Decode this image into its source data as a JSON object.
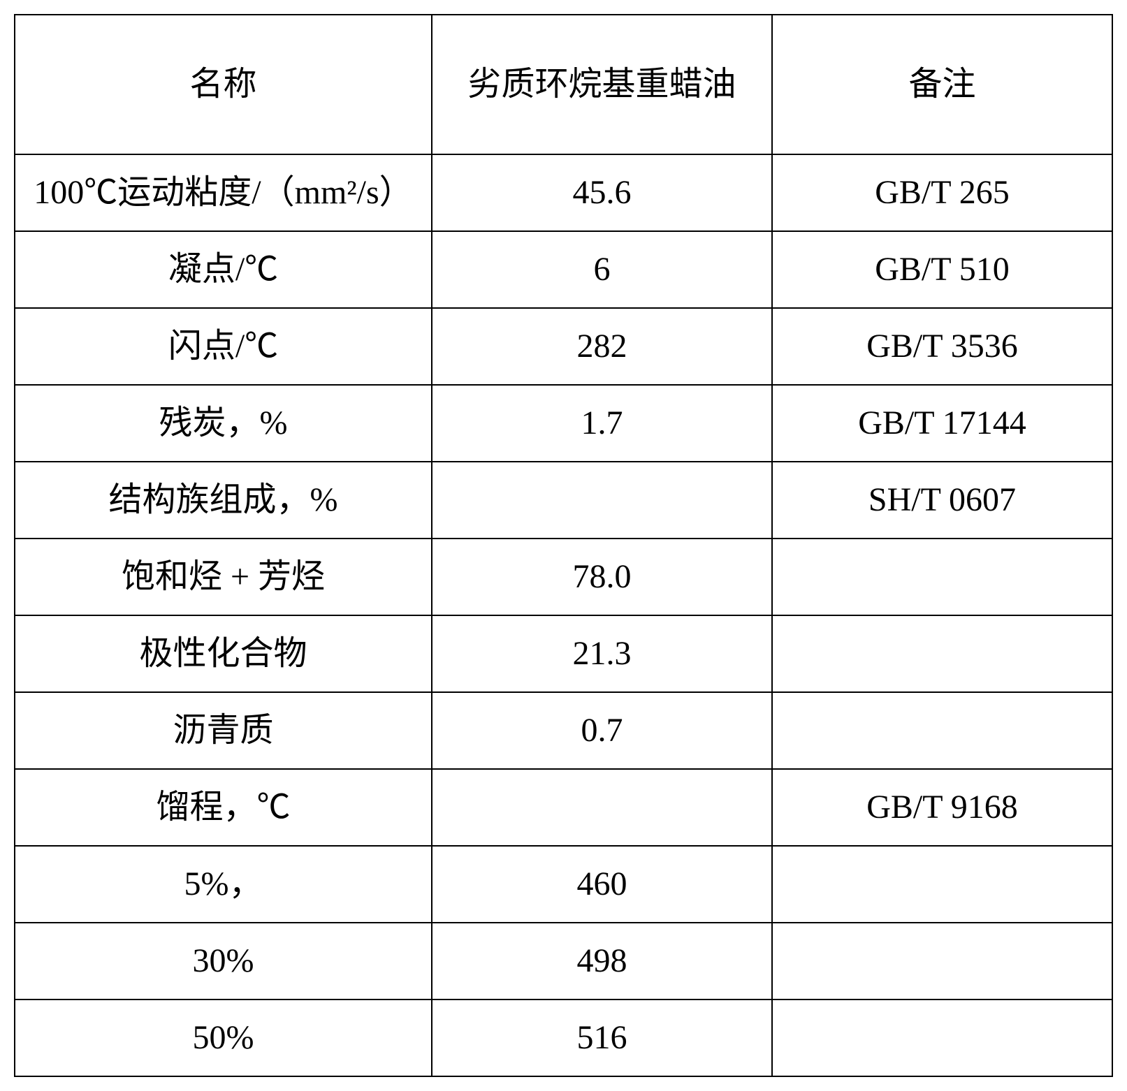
{
  "table": {
    "header": {
      "col1": "名称",
      "col2": "劣质环烷基重蜡油",
      "col3": "备注"
    },
    "rows": [
      {
        "name": "100℃运动粘度/（mm²/s）",
        "value": "45.6",
        "note": "GB/T 265"
      },
      {
        "name": "凝点/℃",
        "value": "6",
        "note": "GB/T 510"
      },
      {
        "name": "闪点/℃",
        "value": "282",
        "note": "GB/T 3536"
      },
      {
        "name": "残炭，%",
        "value": "1.7",
        "note": "GB/T 17144"
      },
      {
        "name": "结构族组成，%",
        "value": "",
        "note": "SH/T 0607"
      },
      {
        "name": "饱和烃 + 芳烃",
        "value": "78.0",
        "note": ""
      },
      {
        "name": "极性化合物",
        "value": "21.3",
        "note": ""
      },
      {
        "name": "沥青质",
        "value": "0.7",
        "note": ""
      },
      {
        "name": "馏程，℃",
        "value": "",
        "note": "GB/T 9168"
      },
      {
        "name": "5%，",
        "value": "460",
        "note": ""
      },
      {
        "name": "30%",
        "value": "498",
        "note": ""
      },
      {
        "name": "50%",
        "value": "516",
        "note": ""
      }
    ],
    "styling": {
      "border_color": "#000000",
      "border_width": 2,
      "background_color": "#ffffff",
      "text_color": "#000000",
      "font_size": 48,
      "font_family": "SimSun, Times New Roman, serif",
      "col_widths_percent": [
        38,
        31,
        31
      ],
      "header_row_height": 200,
      "data_row_height": 92,
      "text_align": "center"
    }
  }
}
